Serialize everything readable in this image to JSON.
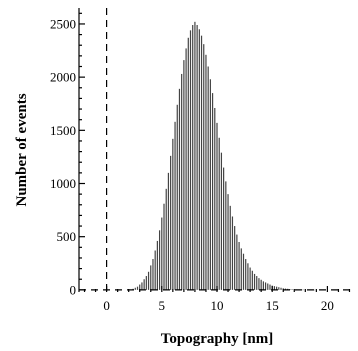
{
  "chart_data": {
    "type": "bar",
    "title": "",
    "xlabel": "Topography [nm]",
    "ylabel": "Number of events",
    "xlim": [
      -2.5,
      22.5
    ],
    "ylim": [
      -20,
      2650
    ],
    "x_ticks": [
      "0",
      "5",
      "10",
      "15",
      "20"
    ],
    "x_tick_values": [
      0,
      5,
      10,
      15,
      20
    ],
    "y_ticks": [
      "0",
      "500",
      "1000",
      "1500",
      "2000",
      "2500"
    ],
    "y_tick_values": [
      0,
      500,
      1000,
      1500,
      2000,
      2500
    ],
    "grid": false,
    "series": [
      {
        "x": [
          2.4,
          2.6,
          2.8,
          3.0,
          3.2,
          3.4,
          3.6,
          3.8,
          4.0,
          4.2,
          4.4,
          4.6,
          4.8,
          5.0,
          5.2,
          5.4,
          5.6,
          5.8,
          6.0,
          6.2,
          6.4,
          6.6,
          6.8,
          7.0,
          7.2,
          7.4,
          7.6,
          7.8,
          8.0,
          8.2,
          8.4,
          8.6,
          8.8,
          9.0,
          9.2,
          9.4,
          9.6,
          9.8,
          10.0,
          10.2,
          10.4,
          10.6,
          10.8,
          11.0,
          11.2,
          11.4,
          11.6,
          11.8,
          12.0,
          12.2,
          12.4,
          12.6,
          12.8,
          13.0,
          13.2,
          13.4,
          13.6,
          13.8,
          14.0,
          14.2,
          14.4,
          14.6,
          14.8,
          15.0,
          15.2,
          15.4,
          15.6,
          15.8,
          16.0,
          16.2,
          16.4,
          16.6,
          16.8,
          17.0,
          17.2,
          17.4,
          17.6,
          17.8,
          18.0,
          18.2,
          18.4,
          18.6,
          18.8,
          19.0
        ],
        "values": [
          10,
          20,
          30,
          50,
          70,
          100,
          130,
          170,
          230,
          290,
          370,
          460,
          560,
          680,
          810,
          950,
          1100,
          1260,
          1420,
          1580,
          1740,
          1890,
          2030,
          2160,
          2270,
          2370,
          2440,
          2490,
          2520,
          2490,
          2450,
          2390,
          2310,
          2210,
          2100,
          1980,
          1850,
          1710,
          1570,
          1430,
          1290,
          1150,
          1020,
          900,
          790,
          690,
          600,
          520,
          450,
          390,
          340,
          290,
          250,
          210,
          180,
          150,
          130,
          110,
          95,
          80,
          70,
          60,
          50,
          40,
          35,
          30,
          25,
          20,
          15,
          12,
          10,
          8,
          6,
          5,
          4,
          3,
          3,
          2,
          2,
          1,
          1,
          1,
          1,
          1
        ]
      }
    ]
  }
}
